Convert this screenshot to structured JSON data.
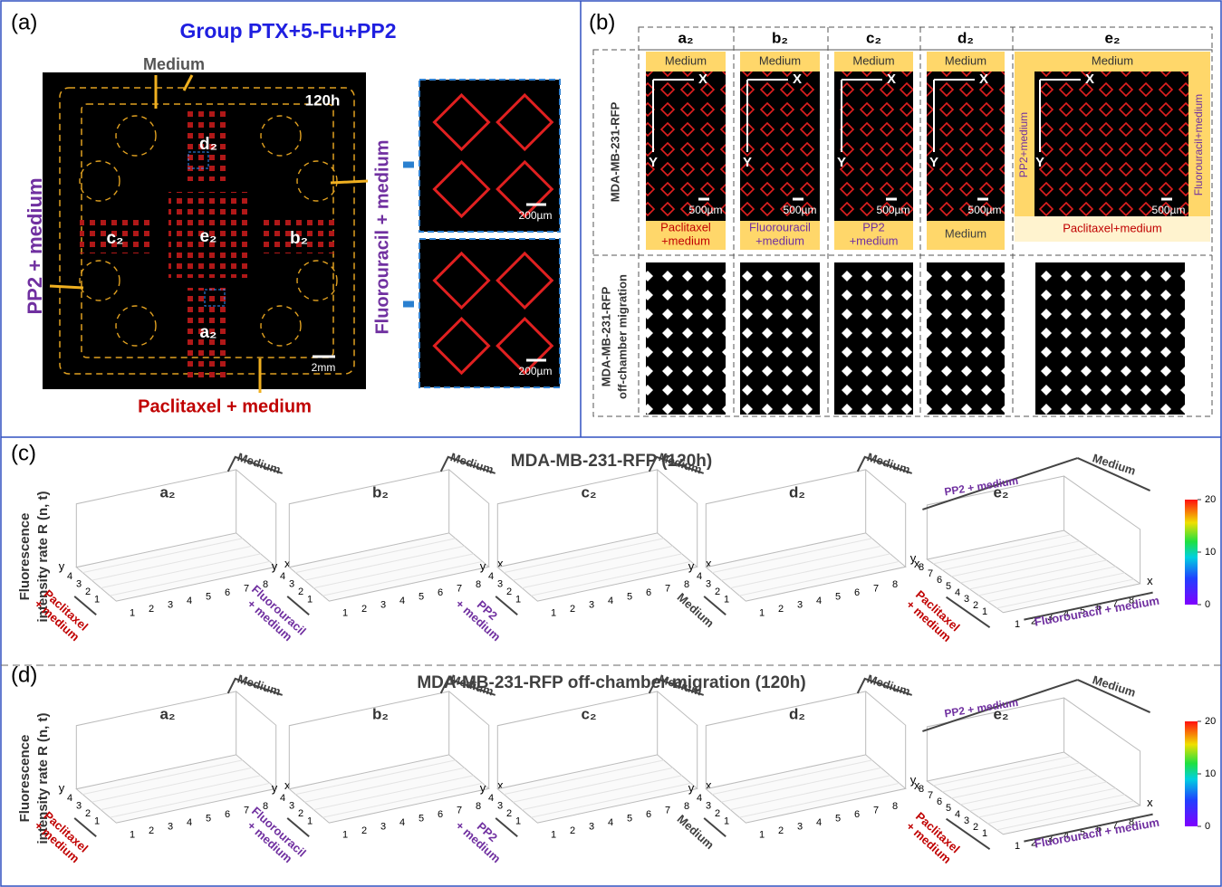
{
  "panel_a": {
    "label": "(a)",
    "title": "Group PTX+5-Fu+PP2",
    "top_label": "Medium",
    "time": "120h",
    "left_label": "PP2 + medium",
    "right_label": "Fluorouracil + medium",
    "bottom_label": "Paclitaxel + medium",
    "chambers": [
      "d₂",
      "e₂",
      "c₂",
      "b₂",
      "a₂"
    ],
    "scale_bar": "2mm",
    "zoom_scales": [
      "200µm",
      "200µm"
    ]
  },
  "panel_b": {
    "label": "(b)",
    "row_labels": [
      [
        "MDA-MB-231-RFP"
      ],
      [
        "MDA-MB-231-RFP",
        "off-chamber migration"
      ]
    ],
    "axis_x": "X",
    "axis_y": "Y",
    "scale_bar": "500µm",
    "columns": [
      {
        "name": "a₂",
        "top": "Medium",
        "bottom": {
          "text": [
            "Paclitaxel",
            "+medium"
          ],
          "color": "#c00000"
        }
      },
      {
        "name": "b₂",
        "top": "Medium",
        "bottom": {
          "text": [
            "Fluorouracil",
            "+medium"
          ],
          "color": "#7030a0"
        }
      },
      {
        "name": "c₂",
        "top": "Medium",
        "bottom": {
          "text": [
            "PP2",
            "+medium"
          ],
          "color": "#7030a0"
        }
      },
      {
        "name": "d₂",
        "top": "Medium",
        "bottom": {
          "text": [
            "Medium"
          ],
          "color": "#404040"
        }
      },
      {
        "name": "e₂",
        "top": "Medium",
        "bottom": {
          "text": [
            "Paclitaxel+medium"
          ],
          "color": "#c00000"
        },
        "left": {
          "text": "PP2+medium",
          "color": "#7030a0"
        },
        "right": {
          "text": "Fluorouracil+medium",
          "color": "#7030a0"
        }
      }
    ]
  },
  "panel_c": {
    "label": "(c)",
    "title": "MDA-MB-231-RFP (120h)",
    "y_label": [
      "Fluorescence",
      "intensity  rate R (n, t)"
    ],
    "axis_x": "x",
    "axis_y": "y",
    "plots": [
      {
        "name": "a₂",
        "back": {
          "text": "Medium",
          "color": "#404040"
        },
        "front": {
          "text": [
            "Paclitaxel",
            "+ medium"
          ],
          "color": "#c00000"
        },
        "x_ticks": [
          1,
          2,
          3,
          4,
          5,
          6,
          7,
          8
        ],
        "y_ticks": [
          1,
          2,
          3,
          4
        ]
      },
      {
        "name": "b₂",
        "back": {
          "text": "Medium",
          "color": "#404040"
        },
        "front": {
          "text": [
            "Fluorouracil",
            "+ medium"
          ],
          "color": "#7030a0"
        },
        "x_ticks": [
          1,
          2,
          3,
          4,
          5,
          6,
          7,
          8
        ],
        "y_ticks": [
          1,
          2,
          3,
          4
        ]
      },
      {
        "name": "c₂",
        "back": {
          "text": "Medium",
          "color": "#404040"
        },
        "front": {
          "text": [
            "PP2",
            "+ medium"
          ],
          "color": "#7030a0"
        },
        "x_ticks": [
          1,
          2,
          3,
          4,
          5,
          6,
          7,
          8
        ],
        "y_ticks": [
          1,
          2,
          3,
          4
        ]
      },
      {
        "name": "d₂",
        "back": {
          "text": "Medium",
          "color": "#404040"
        },
        "front": {
          "text": [
            "Medium"
          ],
          "color": "#404040"
        },
        "x_ticks": [
          1,
          2,
          3,
          4,
          5,
          6,
          7,
          8
        ],
        "y_ticks": [
          1,
          2,
          3,
          4
        ]
      },
      {
        "name": "e₂",
        "back_left": {
          "text": "PP2 + medium",
          "color": "#7030a0"
        },
        "back_right": {
          "text": "Medium",
          "color": "#404040"
        },
        "front": {
          "text": [
            "Paclitaxel",
            "+ medium"
          ],
          "color": "#c00000"
        },
        "front_right": {
          "text": "Fluorouracil + medium",
          "color": "#7030a0"
        },
        "x_ticks": [
          1,
          2,
          3,
          4,
          5,
          6,
          7,
          8
        ],
        "y_ticks": [
          1,
          2,
          3,
          4,
          5,
          6,
          7,
          8
        ]
      }
    ],
    "colorbar": {
      "clim": [
        0,
        20
      ],
      "ticks": [
        0,
        10,
        20
      ]
    }
  },
  "panel_d": {
    "label": "(d)",
    "title": "MDA-MB-231-RFP off-chamber migration (120h)",
    "y_label": [
      "Fluorescence",
      "intensity  rate R (n, t)"
    ],
    "axis_x": "x",
    "axis_y": "y",
    "plots": [
      {
        "name": "a₂",
        "back": {
          "text": "Medium",
          "color": "#404040"
        },
        "front": {
          "text": [
            "Paclitaxel",
            "+ medium"
          ],
          "color": "#c00000"
        },
        "x_ticks": [
          1,
          2,
          3,
          4,
          5,
          6,
          7,
          8
        ],
        "y_ticks": [
          1,
          2,
          3,
          4
        ]
      },
      {
        "name": "b₂",
        "back": {
          "text": "Medium",
          "color": "#404040"
        },
        "front": {
          "text": [
            "Fluorouracil",
            "+ medium"
          ],
          "color": "#7030a0"
        },
        "x_ticks": [
          1,
          2,
          3,
          4,
          5,
          6,
          7,
          8
        ],
        "y_ticks": [
          1,
          2,
          3,
          4
        ]
      },
      {
        "name": "c₂",
        "back": {
          "text": "Medium",
          "color": "#404040"
        },
        "front": {
          "text": [
            "PP2",
            "+ medium"
          ],
          "color": "#7030a0"
        },
        "x_ticks": [
          1,
          2,
          3,
          4,
          5,
          6,
          7,
          8
        ],
        "y_ticks": [
          1,
          2,
          3,
          4
        ]
      },
      {
        "name": "d₂",
        "back": {
          "text": "Medium",
          "color": "#404040"
        },
        "front": {
          "text": [
            "Medium"
          ],
          "color": "#404040"
        },
        "x_ticks": [
          1,
          2,
          3,
          4,
          5,
          6,
          7,
          8
        ],
        "y_ticks": [
          1,
          2,
          3,
          4
        ]
      },
      {
        "name": "e₂",
        "back_left": {
          "text": "PP2 + medium",
          "color": "#7030a0"
        },
        "back_right": {
          "text": "Medium",
          "color": "#404040"
        },
        "front": {
          "text": [
            "Paclitaxel",
            "+ medium"
          ],
          "color": "#c00000"
        },
        "front_right": {
          "text": "Fluorouracil + medium",
          "color": "#7030a0"
        },
        "x_ticks": [
          1,
          2,
          3,
          4,
          5,
          6,
          7,
          8
        ],
        "y_ticks": [
          1,
          2,
          3,
          4,
          5,
          6,
          7,
          8
        ]
      }
    ],
    "colorbar": {
      "clim": [
        0,
        20
      ],
      "ticks": [
        0,
        10,
        20
      ]
    }
  }
}
